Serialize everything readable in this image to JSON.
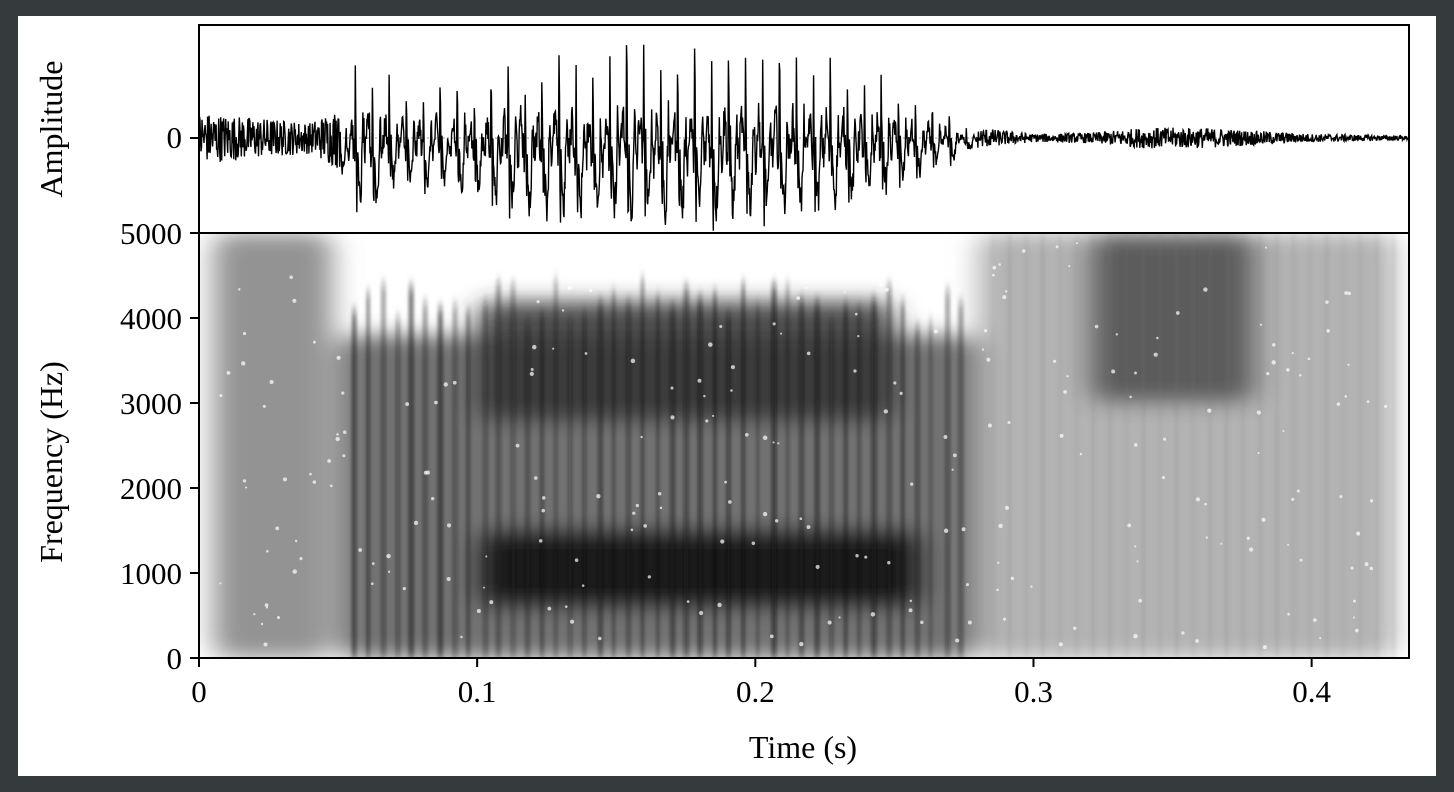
{
  "chart_data": [
    {
      "type": "line",
      "panel": "waveform",
      "ylabel": "Amplitude",
      "xlim": [
        0,
        0.435
      ],
      "y_ticks": [
        0
      ],
      "description_values": {
        "x": [
          0,
          0.02,
          0.04,
          0.05,
          0.055,
          0.06,
          0.07,
          0.08,
          0.09,
          0.1,
          0.11,
          0.12,
          0.13,
          0.14,
          0.15,
          0.16,
          0.17,
          0.18,
          0.19,
          0.2,
          0.21,
          0.22,
          0.23,
          0.24,
          0.25,
          0.26,
          0.27,
          0.28,
          0.3,
          0.32,
          0.34,
          0.36,
          0.38,
          0.4,
          0.42,
          0.435
        ],
        "envelope": [
          0.25,
          0.2,
          0.15,
          0.3,
          0.75,
          0.95,
          0.6,
          0.6,
          0.65,
          0.7,
          0.85,
          0.9,
          0.95,
          0.95,
          1.0,
          1.0,
          1.0,
          0.95,
          0.95,
          0.9,
          0.9,
          0.85,
          0.8,
          0.7,
          0.6,
          0.45,
          0.3,
          0.1,
          0.04,
          0.05,
          0.1,
          0.1,
          0.07,
          0.04,
          0.03,
          0.02
        ]
      }
    },
    {
      "type": "heatmap",
      "panel": "spectrogram",
      "xlabel": "Time (s)",
      "ylabel": "Frequency (Hz)",
      "xlim": [
        0,
        0.435
      ],
      "ylim": [
        0,
        5000
      ],
      "x_ticks": [
        0,
        0.1,
        0.2,
        0.3,
        0.4
      ],
      "x_tick_labels": [
        "0",
        "0.1",
        "0.2",
        "0.3",
        "0.4"
      ],
      "y_ticks": [
        0,
        1000,
        2000,
        3000,
        4000,
        5000
      ],
      "y_tick_labels": [
        "0",
        "1000",
        "2000",
        "3000",
        "4000",
        "5000"
      ],
      "colormap": "grayscale, darker = more energy",
      "energy_regions": [
        {
          "t0": 0.005,
          "t1": 0.048,
          "f0": 0,
          "f1": 5000,
          "level": 0.5
        },
        {
          "t0": 0.05,
          "t1": 0.28,
          "f0": 0,
          "f1": 3800,
          "level": 0.65
        },
        {
          "t0": 0.1,
          "t1": 0.26,
          "f0": 600,
          "f1": 1500,
          "level": 0.95
        },
        {
          "t0": 0.1,
          "t1": 0.25,
          "f0": 2800,
          "f1": 4200,
          "level": 0.8
        },
        {
          "t0": 0.28,
          "t1": 0.43,
          "f0": 0,
          "f1": 5000,
          "level": 0.35
        },
        {
          "t0": 0.32,
          "t1": 0.38,
          "f0": 3000,
          "f1": 5000,
          "level": 0.7
        }
      ]
    }
  ],
  "colors": {
    "background": "#353b3c",
    "panel": "#ffffff",
    "ink": "#000000"
  }
}
